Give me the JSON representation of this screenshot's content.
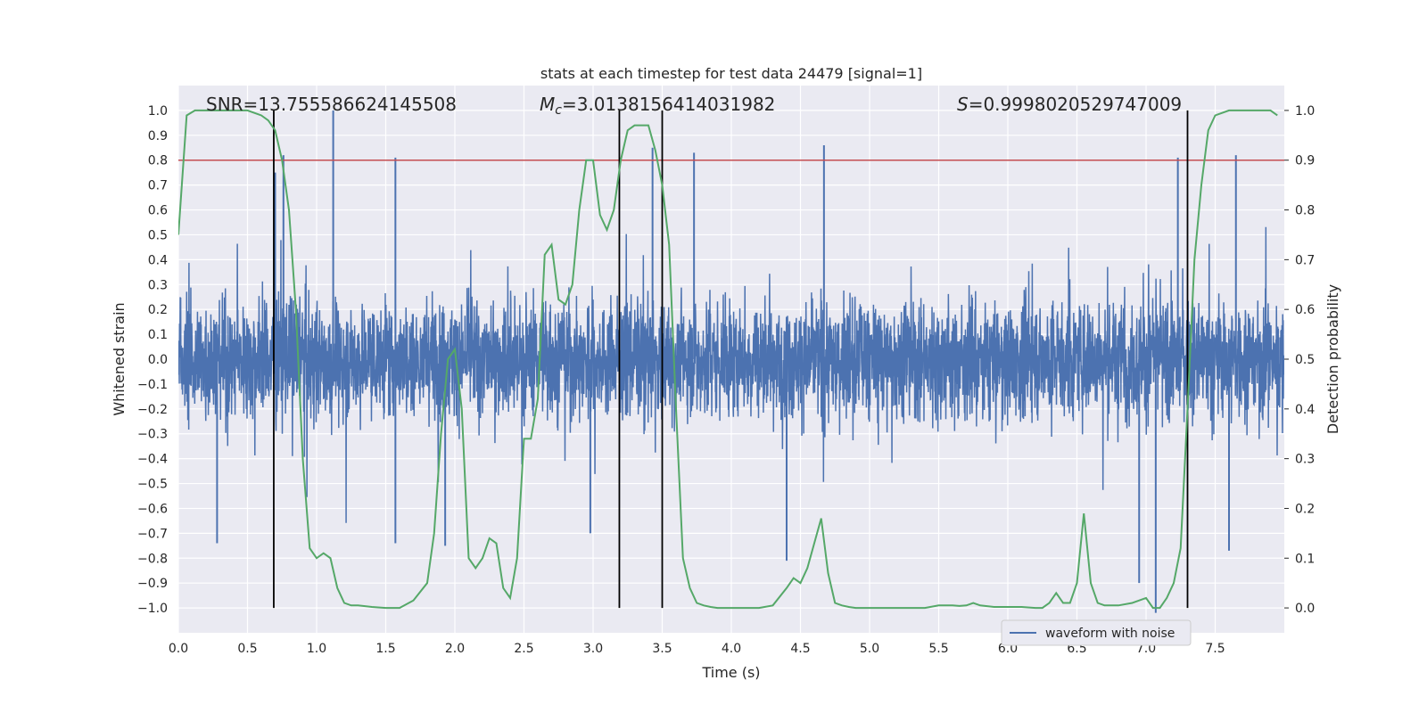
{
  "chart_data": {
    "type": "line",
    "title": "stats at each timestep for test data 24479 [signal=1]",
    "xlabel": "Time (s)",
    "ylabel_left": "Whitened strain",
    "ylabel_right": "Detection probability",
    "xlim": [
      0.0,
      8.0
    ],
    "ylim_left": [
      -1.1,
      1.1
    ],
    "ylim_right": [
      -0.05,
      1.05
    ],
    "xticks": [
      "0.0",
      "0.5",
      "1.0",
      "1.5",
      "2.0",
      "2.5",
      "3.0",
      "3.5",
      "4.0",
      "4.5",
      "5.0",
      "5.5",
      "6.0",
      "6.5",
      "7.0",
      "7.5"
    ],
    "yticks_left": [
      "-1.0",
      "-0.9",
      "-0.8",
      "-0.7",
      "-0.6",
      "-0.5",
      "-0.4",
      "-0.3",
      "-0.2",
      "-0.1",
      "0.0",
      "0.1",
      "0.2",
      "0.3",
      "0.4",
      "0.5",
      "0.6",
      "0.7",
      "0.8",
      "0.9",
      "1.0"
    ],
    "yticks_right": [
      "0.0",
      "0.1",
      "0.2",
      "0.3",
      "0.4",
      "0.5",
      "0.6",
      "0.7",
      "0.8",
      "0.9",
      "1.0"
    ],
    "grid": true,
    "legend": {
      "label": "waveform with noise",
      "position": "lower-right"
    },
    "annotations": {
      "snr": "SNR=13.755586624145508",
      "mc_symbol": "M",
      "mc_sub": "c",
      "mc_value": "=3.0138156414031982",
      "s_symbol": "S",
      "s_value": "=0.9998020529747009"
    },
    "threshold_line": {
      "y": 0.8,
      "color": "#c44e52"
    },
    "vertical_lines": [
      0.69,
      3.19,
      3.5,
      7.3
    ],
    "waveform": {
      "name": "waveform with noise",
      "color": "#4c72b0",
      "t_end": 8.0,
      "typical_range": [
        -0.4,
        0.45
      ],
      "peaks": [
        {
          "t": 0.76,
          "v": 0.82
        },
        {
          "t": 1.12,
          "v": 1.0
        },
        {
          "t": 0.7,
          "v": 0.75
        },
        {
          "t": 1.57,
          "v": 0.81
        },
        {
          "t": 3.43,
          "v": 0.85
        },
        {
          "t": 3.73,
          "v": 0.83
        },
        {
          "t": 4.67,
          "v": 0.86
        },
        {
          "t": 7.23,
          "v": 0.81
        },
        {
          "t": 7.65,
          "v": 0.82
        },
        {
          "t": 0.28,
          "v": -0.74
        },
        {
          "t": 1.93,
          "v": -0.75
        },
        {
          "t": 4.4,
          "v": -0.81
        },
        {
          "t": 6.95,
          "v": -0.9
        },
        {
          "t": 7.07,
          "v": -1.02
        },
        {
          "t": 7.6,
          "v": -0.77
        },
        {
          "t": 1.57,
          "v": -0.74
        },
        {
          "t": 2.98,
          "v": -0.7
        }
      ]
    },
    "detection_probability": {
      "name": "detection probability",
      "color": "#55a868",
      "x": [
        0.0,
        0.06,
        0.12,
        0.2,
        0.3,
        0.4,
        0.5,
        0.6,
        0.65,
        0.7,
        0.75,
        0.8,
        0.85,
        0.9,
        0.95,
        1.0,
        1.05,
        1.1,
        1.15,
        1.2,
        1.25,
        1.3,
        1.4,
        1.5,
        1.6,
        1.7,
        1.8,
        1.85,
        1.9,
        1.95,
        2.0,
        2.05,
        2.1,
        2.15,
        2.2,
        2.25,
        2.3,
        2.35,
        2.4,
        2.45,
        2.5,
        2.55,
        2.6,
        2.65,
        2.7,
        2.75,
        2.8,
        2.85,
        2.9,
        2.95,
        3.0,
        3.05,
        3.1,
        3.15,
        3.2,
        3.25,
        3.3,
        3.35,
        3.4,
        3.45,
        3.5,
        3.55,
        3.6,
        3.65,
        3.7,
        3.75,
        3.8,
        3.85,
        3.9,
        4.0,
        4.1,
        4.2,
        4.3,
        4.4,
        4.45,
        4.5,
        4.55,
        4.6,
        4.65,
        4.7,
        4.75,
        4.8,
        4.85,
        4.9,
        5.0,
        5.1,
        5.2,
        5.3,
        5.4,
        5.5,
        5.6,
        5.65,
        5.7,
        5.75,
        5.8,
        5.9,
        6.0,
        6.1,
        6.2,
        6.25,
        6.3,
        6.35,
        6.4,
        6.45,
        6.5,
        6.55,
        6.6,
        6.65,
        6.7,
        6.8,
        6.9,
        7.0,
        7.05,
        7.1,
        7.15,
        7.2,
        7.25,
        7.3,
        7.35,
        7.4,
        7.45,
        7.5,
        7.6,
        7.7,
        7.8,
        7.9,
        7.95
      ],
      "y": [
        0.75,
        0.99,
        1.0,
        1.0,
        1.0,
        1.0,
        1.0,
        0.99,
        0.98,
        0.96,
        0.9,
        0.8,
        0.6,
        0.3,
        0.12,
        0.1,
        0.11,
        0.1,
        0.04,
        0.01,
        0.005,
        0.005,
        0.002,
        0.0,
        0.0,
        0.015,
        0.05,
        0.15,
        0.35,
        0.5,
        0.52,
        0.4,
        0.1,
        0.08,
        0.1,
        0.14,
        0.13,
        0.04,
        0.02,
        0.1,
        0.34,
        0.34,
        0.42,
        0.71,
        0.73,
        0.62,
        0.61,
        0.65,
        0.8,
        0.9,
        0.9,
        0.79,
        0.76,
        0.8,
        0.9,
        0.96,
        0.97,
        0.97,
        0.97,
        0.92,
        0.85,
        0.73,
        0.4,
        0.1,
        0.04,
        0.01,
        0.005,
        0.002,
        0.0,
        0.0,
        0.0,
        0.0,
        0.005,
        0.04,
        0.06,
        0.05,
        0.08,
        0.13,
        0.18,
        0.07,
        0.01,
        0.005,
        0.002,
        0.0,
        0.0,
        0.0,
        0.0,
        0.0,
        0.0,
        0.005,
        0.005,
        0.004,
        0.005,
        0.01,
        0.005,
        0.002,
        0.002,
        0.002,
        0.0,
        0.0,
        0.01,
        0.03,
        0.01,
        0.01,
        0.05,
        0.19,
        0.05,
        0.01,
        0.005,
        0.005,
        0.01,
        0.02,
        0.0,
        0.0,
        0.02,
        0.05,
        0.12,
        0.4,
        0.7,
        0.85,
        0.96,
        0.99,
        1.0,
        1.0,
        1.0,
        1.0,
        0.99
      ]
    }
  }
}
